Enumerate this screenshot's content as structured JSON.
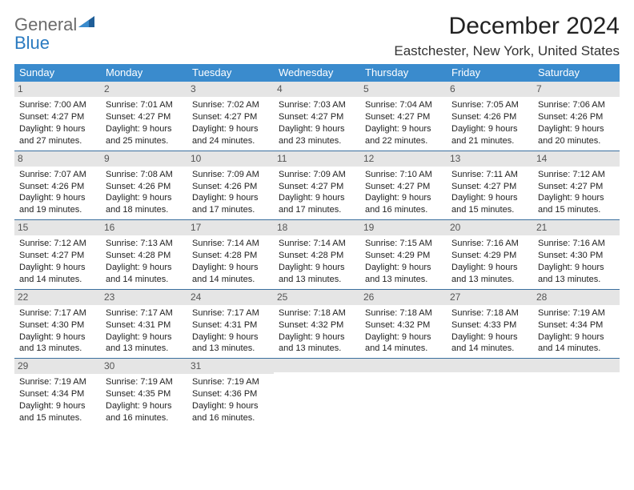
{
  "logo": {
    "general": "General",
    "blue": "Blue"
  },
  "title": "December 2024",
  "location": "Eastchester, New York, United States",
  "colors": {
    "header_bg": "#3a8bcd",
    "header_text": "#ffffff",
    "daynum_bg": "#e5e5e5",
    "daynum_text": "#555555",
    "week_sep": "#3a6f9e",
    "logo_gray": "#6b6b6b",
    "logo_blue": "#2a7ac0"
  },
  "weekdays": [
    "Sunday",
    "Monday",
    "Tuesday",
    "Wednesday",
    "Thursday",
    "Friday",
    "Saturday"
  ],
  "days": [
    {
      "n": "1",
      "sr": "Sunrise: 7:00 AM",
      "ss": "Sunset: 4:27 PM",
      "d1": "Daylight: 9 hours",
      "d2": "and 27 minutes."
    },
    {
      "n": "2",
      "sr": "Sunrise: 7:01 AM",
      "ss": "Sunset: 4:27 PM",
      "d1": "Daylight: 9 hours",
      "d2": "and 25 minutes."
    },
    {
      "n": "3",
      "sr": "Sunrise: 7:02 AM",
      "ss": "Sunset: 4:27 PM",
      "d1": "Daylight: 9 hours",
      "d2": "and 24 minutes."
    },
    {
      "n": "4",
      "sr": "Sunrise: 7:03 AM",
      "ss": "Sunset: 4:27 PM",
      "d1": "Daylight: 9 hours",
      "d2": "and 23 minutes."
    },
    {
      "n": "5",
      "sr": "Sunrise: 7:04 AM",
      "ss": "Sunset: 4:27 PM",
      "d1": "Daylight: 9 hours",
      "d2": "and 22 minutes."
    },
    {
      "n": "6",
      "sr": "Sunrise: 7:05 AM",
      "ss": "Sunset: 4:26 PM",
      "d1": "Daylight: 9 hours",
      "d2": "and 21 minutes."
    },
    {
      "n": "7",
      "sr": "Sunrise: 7:06 AM",
      "ss": "Sunset: 4:26 PM",
      "d1": "Daylight: 9 hours",
      "d2": "and 20 minutes."
    },
    {
      "n": "8",
      "sr": "Sunrise: 7:07 AM",
      "ss": "Sunset: 4:26 PM",
      "d1": "Daylight: 9 hours",
      "d2": "and 19 minutes."
    },
    {
      "n": "9",
      "sr": "Sunrise: 7:08 AM",
      "ss": "Sunset: 4:26 PM",
      "d1": "Daylight: 9 hours",
      "d2": "and 18 minutes."
    },
    {
      "n": "10",
      "sr": "Sunrise: 7:09 AM",
      "ss": "Sunset: 4:26 PM",
      "d1": "Daylight: 9 hours",
      "d2": "and 17 minutes."
    },
    {
      "n": "11",
      "sr": "Sunrise: 7:09 AM",
      "ss": "Sunset: 4:27 PM",
      "d1": "Daylight: 9 hours",
      "d2": "and 17 minutes."
    },
    {
      "n": "12",
      "sr": "Sunrise: 7:10 AM",
      "ss": "Sunset: 4:27 PM",
      "d1": "Daylight: 9 hours",
      "d2": "and 16 minutes."
    },
    {
      "n": "13",
      "sr": "Sunrise: 7:11 AM",
      "ss": "Sunset: 4:27 PM",
      "d1": "Daylight: 9 hours",
      "d2": "and 15 minutes."
    },
    {
      "n": "14",
      "sr": "Sunrise: 7:12 AM",
      "ss": "Sunset: 4:27 PM",
      "d1": "Daylight: 9 hours",
      "d2": "and 15 minutes."
    },
    {
      "n": "15",
      "sr": "Sunrise: 7:12 AM",
      "ss": "Sunset: 4:27 PM",
      "d1": "Daylight: 9 hours",
      "d2": "and 14 minutes."
    },
    {
      "n": "16",
      "sr": "Sunrise: 7:13 AM",
      "ss": "Sunset: 4:28 PM",
      "d1": "Daylight: 9 hours",
      "d2": "and 14 minutes."
    },
    {
      "n": "17",
      "sr": "Sunrise: 7:14 AM",
      "ss": "Sunset: 4:28 PM",
      "d1": "Daylight: 9 hours",
      "d2": "and 14 minutes."
    },
    {
      "n": "18",
      "sr": "Sunrise: 7:14 AM",
      "ss": "Sunset: 4:28 PM",
      "d1": "Daylight: 9 hours",
      "d2": "and 13 minutes."
    },
    {
      "n": "19",
      "sr": "Sunrise: 7:15 AM",
      "ss": "Sunset: 4:29 PM",
      "d1": "Daylight: 9 hours",
      "d2": "and 13 minutes."
    },
    {
      "n": "20",
      "sr": "Sunrise: 7:16 AM",
      "ss": "Sunset: 4:29 PM",
      "d1": "Daylight: 9 hours",
      "d2": "and 13 minutes."
    },
    {
      "n": "21",
      "sr": "Sunrise: 7:16 AM",
      "ss": "Sunset: 4:30 PM",
      "d1": "Daylight: 9 hours",
      "d2": "and 13 minutes."
    },
    {
      "n": "22",
      "sr": "Sunrise: 7:17 AM",
      "ss": "Sunset: 4:30 PM",
      "d1": "Daylight: 9 hours",
      "d2": "and 13 minutes."
    },
    {
      "n": "23",
      "sr": "Sunrise: 7:17 AM",
      "ss": "Sunset: 4:31 PM",
      "d1": "Daylight: 9 hours",
      "d2": "and 13 minutes."
    },
    {
      "n": "24",
      "sr": "Sunrise: 7:17 AM",
      "ss": "Sunset: 4:31 PM",
      "d1": "Daylight: 9 hours",
      "d2": "and 13 minutes."
    },
    {
      "n": "25",
      "sr": "Sunrise: 7:18 AM",
      "ss": "Sunset: 4:32 PM",
      "d1": "Daylight: 9 hours",
      "d2": "and 13 minutes."
    },
    {
      "n": "26",
      "sr": "Sunrise: 7:18 AM",
      "ss": "Sunset: 4:32 PM",
      "d1": "Daylight: 9 hours",
      "d2": "and 14 minutes."
    },
    {
      "n": "27",
      "sr": "Sunrise: 7:18 AM",
      "ss": "Sunset: 4:33 PM",
      "d1": "Daylight: 9 hours",
      "d2": "and 14 minutes."
    },
    {
      "n": "28",
      "sr": "Sunrise: 7:19 AM",
      "ss": "Sunset: 4:34 PM",
      "d1": "Daylight: 9 hours",
      "d2": "and 14 minutes."
    },
    {
      "n": "29",
      "sr": "Sunrise: 7:19 AM",
      "ss": "Sunset: 4:34 PM",
      "d1": "Daylight: 9 hours",
      "d2": "and 15 minutes."
    },
    {
      "n": "30",
      "sr": "Sunrise: 7:19 AM",
      "ss": "Sunset: 4:35 PM",
      "d1": "Daylight: 9 hours",
      "d2": "and 16 minutes."
    },
    {
      "n": "31",
      "sr": "Sunrise: 7:19 AM",
      "ss": "Sunset: 4:36 PM",
      "d1": "Daylight: 9 hours",
      "d2": "and 16 minutes."
    }
  ]
}
